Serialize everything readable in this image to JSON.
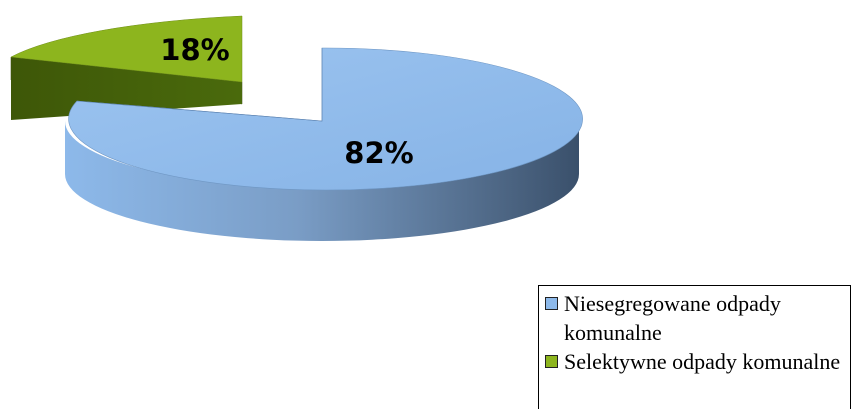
{
  "chart_data": {
    "type": "pie",
    "style": "3d-exploded",
    "title": "",
    "slices": [
      {
        "label": "Niesegregowane odpady komunalne",
        "value": 82,
        "display": "82%",
        "color": "#8DB9EA",
        "side_color_dark": "#3A506B"
      },
      {
        "label": "Selektywne odpady komunalne",
        "value": 18,
        "display": "18%",
        "color": "#8DB51E",
        "side_color_dark": "#3E5708"
      }
    ],
    "legend_position": "bottom-right"
  }
}
